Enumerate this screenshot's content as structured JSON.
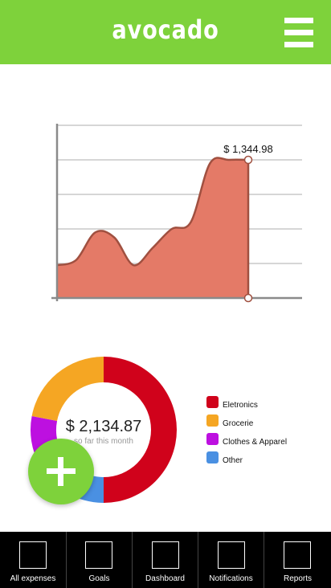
{
  "header": {
    "title": "avocado",
    "menu_icon": "hamburger-menu-icon"
  },
  "colors": {
    "brand": "#7ed23b",
    "area_fill": "#e47a67",
    "area_stroke": "#a05040",
    "electronics": "#d0021b",
    "grocerie": "#f5a623",
    "clothes": "#bd10e0",
    "other": "#4a90e2"
  },
  "chart_data": [
    {
      "type": "area",
      "title": "",
      "xlabel": "",
      "ylabel": "",
      "x": [
        0,
        1,
        2,
        3,
        4,
        5,
        6,
        7,
        8,
        9,
        10
      ],
      "values": [
        0.95,
        1.1,
        1.9,
        1.75,
        0.95,
        1.45,
        2.0,
        2.2,
        3.9,
        4.0,
        4.0
      ],
      "ylim": [
        0,
        5
      ],
      "grid": true,
      "annotation": "$ 1,344.98"
    },
    {
      "type": "pie",
      "title": "",
      "donut": true,
      "center_value": "$ 2,134.87",
      "center_label": "so far this month",
      "slices": [
        {
          "name": "Eletronics",
          "value": 50,
          "color": "#d0021b"
        },
        {
          "name": "Other",
          "value": 17,
          "color": "#4a90e2"
        },
        {
          "name": "Clothes & Apparel",
          "value": 11,
          "color": "#bd10e0"
        },
        {
          "name": "Grocerie",
          "value": 22,
          "color": "#f5a623"
        }
      ]
    }
  ],
  "legend": [
    {
      "label": "Eletronics",
      "color": "#d0021b"
    },
    {
      "label": "Grocerie",
      "color": "#f5a623"
    },
    {
      "label": "Clothes & Apparel",
      "color": "#bd10e0"
    },
    {
      "label": "Other",
      "color": "#4a90e2"
    }
  ],
  "fab": {
    "icon": "plus-icon"
  },
  "tabs": [
    {
      "label": "All expenses"
    },
    {
      "label": "Goals"
    },
    {
      "label": "Dashboard"
    },
    {
      "label": "Notifications"
    },
    {
      "label": "Reports"
    }
  ]
}
